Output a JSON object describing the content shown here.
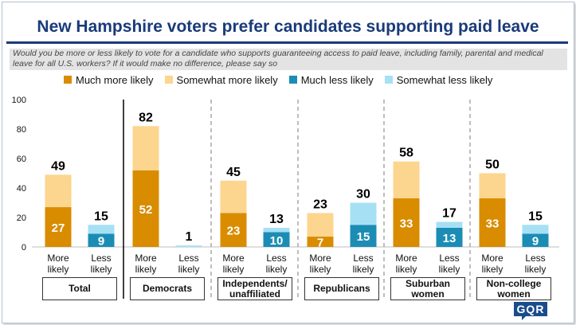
{
  "chart_data": {
    "type": "bar",
    "stacked": true,
    "title": "New Hampshire voters prefer candidates supporting paid leave",
    "question": "Would you be more or less likely to vote for a candidate who supports guaranteeing access to paid leave, including family, parental and medical leave for all U.S. workers? If it would make no difference, please say so",
    "ylim": [
      0,
      100
    ],
    "yticks": [
      "0",
      "20",
      "40",
      "60",
      "80",
      "100"
    ],
    "legend_position": "top",
    "series": [
      {
        "name": "Much more likely",
        "color": "#d98c00"
      },
      {
        "name": "Somewhat more likely",
        "color": "#fcd58e"
      },
      {
        "name": "Much less likely",
        "color": "#1b8db5"
      },
      {
        "name": "Somewhat less likely",
        "color": "#a6e0f5"
      }
    ],
    "groups": [
      {
        "label": "Total",
        "more": {
          "label": "More likely",
          "strong": 27,
          "somewhat": 22,
          "total": 49
        },
        "less": {
          "label": "Less likely",
          "strong": 9,
          "somewhat": 6,
          "total": 15
        }
      },
      {
        "label": "Democrats",
        "more": {
          "label": "More likely",
          "strong": 52,
          "somewhat": 30,
          "total": 82
        },
        "less": {
          "label": "Less likely",
          "strong": 0,
          "somewhat": 1,
          "total": 1
        }
      },
      {
        "label": "Independents/ unaffiliated",
        "more": {
          "label": "More likely",
          "strong": 23,
          "somewhat": 22,
          "total": 45
        },
        "less": {
          "label": "Less likely",
          "strong": 10,
          "somewhat": 3,
          "total": 13
        }
      },
      {
        "label": "Republicans",
        "more": {
          "label": "More likely",
          "strong": 7,
          "somewhat": 16,
          "total": 23
        },
        "less": {
          "label": "Less likely",
          "strong": 15,
          "somewhat": 15,
          "total": 30
        }
      },
      {
        "label": "Suburban women",
        "more": {
          "label": "More likely",
          "strong": 33,
          "somewhat": 25,
          "total": 58
        },
        "less": {
          "label": "Less likely",
          "strong": 13,
          "somewhat": 4,
          "total": 17
        }
      },
      {
        "label": "Non-college women",
        "more": {
          "label": "More likely",
          "strong": 33,
          "somewhat": 17,
          "total": 50
        },
        "less": {
          "label": "Less likely",
          "strong": 9,
          "somewhat": 6,
          "total": 15
        }
      }
    ]
  },
  "logo_text": "GQR"
}
